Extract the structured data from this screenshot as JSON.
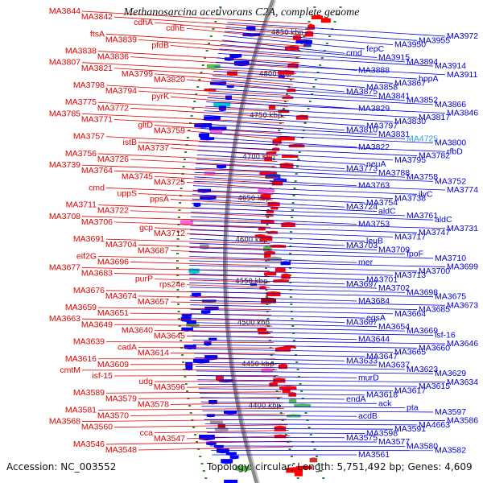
{
  "title": "Methanosarcina acetivorans C2A, complete genome",
  "accession": "Accession: NC_003552",
  "topology": "Topology: circular; Length: 5,751,492 bp; Genes: 4,609",
  "colors": {
    "left_labels": "#e00000",
    "right_labels": "#0000dd",
    "highlight": "#2aa0e0",
    "backbone": "#888888",
    "tick": "#2a8a2a"
  },
  "kbp_marks": [
    "4850 kbp",
    "4800 kbp",
    "4750 kbp",
    "4700 kbp",
    "4650 kbp",
    "4600 kbp",
    "4550 kbp",
    "4500 kbp",
    "4450 kbp",
    "4400 kbp"
  ],
  "left_genes": [
    "MA3844",
    "MA3842",
    "cdhA",
    "cdhE",
    "ftsA",
    "MA3839",
    "pfdB",
    "MA3838",
    "MA3836",
    "MA3807",
    "MA3821",
    "MA3799",
    "MA3820",
    "MA3798",
    "MA3794",
    "pyrK",
    "MA3775",
    "MA3772",
    "MA3785",
    "MA3771",
    "gltD",
    "MA3759",
    "MA3757",
    "istB",
    "MA3737",
    "MA3756",
    "MA3726",
    "MA3739",
    "MA3764",
    "MA3745",
    "MA3725",
    "cmd",
    "uppS",
    "ppsA",
    "MA3711",
    "MA3722",
    "MA3708",
    "MA3706",
    "gcp",
    "MA3712",
    "MA3691",
    "MA3704",
    "MA3687",
    "eif2G",
    "MA3696",
    "MA3677",
    "MA3683",
    "purP",
    "rps24e",
    "MA3676",
    "MA3674",
    "MA3657",
    "MA3659",
    "MA3651",
    "MA3663",
    "MA3649",
    "MA3640",
    "MA3645",
    "MA3639",
    "cadA",
    "MA3614",
    "MA3616",
    "MA3609",
    "cmtM",
    "isf-15",
    "udg",
    "MA3596",
    "MA3589",
    "MA3579",
    "MA3578",
    "MA3581",
    "MA3570",
    "MA3568",
    "MA3560",
    "cca",
    "MA3547",
    "MA3546",
    "MA3548"
  ],
  "right_genes": [
    "MA3972",
    "MA3955",
    "MA3950",
    "fepC",
    "cmd",
    "MA3915",
    "MA3894",
    "MA3914",
    "MA3888",
    "MA3911",
    "hppA",
    "MA3867",
    "MA3858",
    "MA3875",
    "MA3841",
    "MA3852",
    "MA3866",
    "MA3829",
    "MA3846",
    "MA3817",
    "MA3830",
    "MA3797",
    "MA3810",
    "MA3831",
    "MA4725",
    "MA3800",
    "MA3822",
    "rfbD",
    "MA3782",
    "MA3795",
    "neuA",
    "MA3773",
    "MA3788",
    "MA3758",
    "MA3752",
    "MA3763",
    "MA3774",
    "ilvC",
    "MA3738",
    "MA3754",
    "MA3724",
    "aldC",
    "MA3761",
    "aldC",
    "MA3753",
    "MA3731",
    "MA3747",
    "MA3717",
    "leuB",
    "MA3703",
    "MA3709",
    "fpoF",
    "MA3710",
    "mer",
    "MA3699",
    "MA3700",
    "MA3713",
    "MA3701",
    "MA3697",
    "MA3702",
    "MA3698",
    "MA3675",
    "MA3684",
    "MA3673",
    "MA3685",
    "MA3664",
    "egsA",
    "MA3667",
    "MA3654",
    "MA3669",
    "isf-16",
    "MA3644",
    "MA3646",
    "MA3660",
    "MA3665",
    "MA3647",
    "MA3633",
    "MA3637",
    "MA3623",
    "MA3629",
    "murD",
    "MA3634",
    "MA3615",
    "MA3617",
    "MA3618",
    "endA",
    "ack",
    "pta",
    "MA3597",
    "acdB",
    "MA3586",
    "MA4663",
    "MA3591",
    "MA3598",
    "MA3575",
    "MA3577",
    "MA3580",
    "MA3582",
    "MA3561"
  ]
}
